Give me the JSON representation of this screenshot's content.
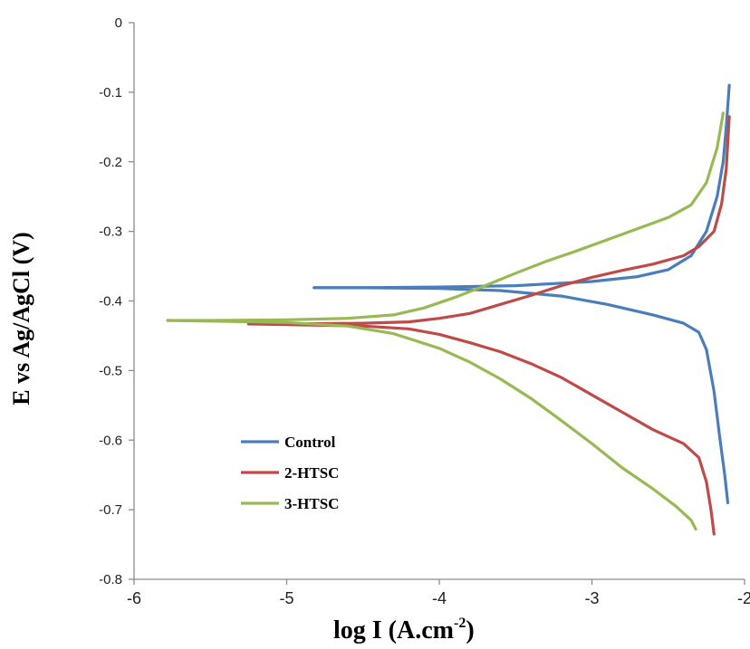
{
  "chart_data": {
    "type": "line",
    "title": "",
    "xlabel": "log I (A.cm",
    "xlabel_sup": "-2",
    "xlabel_close": ")",
    "ylabel": "E vs Ag/AgCl (V)",
    "xlim": [
      -6,
      -2
    ],
    "ylim": [
      -0.8,
      0
    ],
    "x_ticks": [
      -6,
      -5,
      -4,
      -3,
      -2
    ],
    "x_tick_labels": [
      "-6",
      "-5",
      "-4",
      "-3",
      "-2"
    ],
    "y_ticks": [
      0,
      -0.1,
      -0.2,
      -0.3,
      -0.4,
      -0.5,
      -0.6,
      -0.7,
      -0.8
    ],
    "y_tick_labels": [
      "0",
      "-0.1",
      "-0.2",
      "-0.3",
      "-0.4",
      "-0.5",
      "-0.6",
      "-0.7",
      "-0.8"
    ],
    "grid": false,
    "legend_position": "bottom-left",
    "series": [
      {
        "name": "Control",
        "color": "#4a7ebb",
        "anodic": [
          [
            -4.82,
            -0.381
          ],
          [
            -4.5,
            -0.381
          ],
          [
            -4.0,
            -0.38
          ],
          [
            -3.5,
            -0.378
          ],
          [
            -3.0,
            -0.372
          ],
          [
            -2.7,
            -0.365
          ],
          [
            -2.5,
            -0.355
          ],
          [
            -2.35,
            -0.335
          ],
          [
            -2.25,
            -0.3
          ],
          [
            -2.18,
            -0.25
          ],
          [
            -2.14,
            -0.2
          ],
          [
            -2.12,
            -0.15
          ],
          [
            -2.1,
            -0.09
          ]
        ],
        "cathodic": [
          [
            -4.82,
            -0.381
          ],
          [
            -4.5,
            -0.381
          ],
          [
            -4.0,
            -0.382
          ],
          [
            -3.6,
            -0.385
          ],
          [
            -3.2,
            -0.393
          ],
          [
            -2.9,
            -0.405
          ],
          [
            -2.6,
            -0.42
          ],
          [
            -2.4,
            -0.432
          ],
          [
            -2.3,
            -0.445
          ],
          [
            -2.25,
            -0.47
          ],
          [
            -2.2,
            -0.53
          ],
          [
            -2.16,
            -0.6
          ],
          [
            -2.13,
            -0.65
          ],
          [
            -2.11,
            -0.69
          ]
        ]
      },
      {
        "name": "2-HTSC",
        "color": "#be4b48",
        "anodic": [
          [
            -5.25,
            -0.433
          ],
          [
            -5.0,
            -0.433
          ],
          [
            -4.5,
            -0.432
          ],
          [
            -4.2,
            -0.43
          ],
          [
            -4.0,
            -0.425
          ],
          [
            -3.8,
            -0.418
          ],
          [
            -3.6,
            -0.405
          ],
          [
            -3.4,
            -0.392
          ],
          [
            -3.2,
            -0.378
          ],
          [
            -3.0,
            -0.366
          ],
          [
            -2.8,
            -0.356
          ],
          [
            -2.6,
            -0.347
          ],
          [
            -2.4,
            -0.335
          ],
          [
            -2.3,
            -0.322
          ],
          [
            -2.2,
            -0.3
          ],
          [
            -2.15,
            -0.26
          ],
          [
            -2.12,
            -0.21
          ],
          [
            -2.1,
            -0.135
          ]
        ],
        "cathodic": [
          [
            -5.25,
            -0.433
          ],
          [
            -5.0,
            -0.434
          ],
          [
            -4.5,
            -0.436
          ],
          [
            -4.2,
            -0.44
          ],
          [
            -4.0,
            -0.448
          ],
          [
            -3.8,
            -0.46
          ],
          [
            -3.6,
            -0.473
          ],
          [
            -3.4,
            -0.49
          ],
          [
            -3.2,
            -0.51
          ],
          [
            -3.0,
            -0.535
          ],
          [
            -2.8,
            -0.56
          ],
          [
            -2.6,
            -0.585
          ],
          [
            -2.4,
            -0.605
          ],
          [
            -2.3,
            -0.625
          ],
          [
            -2.25,
            -0.66
          ],
          [
            -2.22,
            -0.7
          ],
          [
            -2.2,
            -0.735
          ]
        ]
      },
      {
        "name": "3-HTSC",
        "color": "#98b954",
        "anodic": [
          [
            -5.78,
            -0.428
          ],
          [
            -5.5,
            -0.428
          ],
          [
            -5.0,
            -0.427
          ],
          [
            -4.6,
            -0.425
          ],
          [
            -4.3,
            -0.42
          ],
          [
            -4.1,
            -0.41
          ],
          [
            -3.9,
            -0.395
          ],
          [
            -3.7,
            -0.378
          ],
          [
            -3.5,
            -0.36
          ],
          [
            -3.3,
            -0.343
          ],
          [
            -3.1,
            -0.328
          ],
          [
            -2.9,
            -0.312
          ],
          [
            -2.7,
            -0.296
          ],
          [
            -2.5,
            -0.28
          ],
          [
            -2.35,
            -0.262
          ],
          [
            -2.25,
            -0.23
          ],
          [
            -2.18,
            -0.18
          ],
          [
            -2.14,
            -0.13
          ]
        ],
        "cathodic": [
          [
            -5.78,
            -0.428
          ],
          [
            -5.5,
            -0.429
          ],
          [
            -5.0,
            -0.431
          ],
          [
            -4.6,
            -0.436
          ],
          [
            -4.3,
            -0.447
          ],
          [
            -4.0,
            -0.468
          ],
          [
            -3.8,
            -0.488
          ],
          [
            -3.6,
            -0.512
          ],
          [
            -3.4,
            -0.54
          ],
          [
            -3.2,
            -0.572
          ],
          [
            -3.0,
            -0.605
          ],
          [
            -2.8,
            -0.64
          ],
          [
            -2.6,
            -0.67
          ],
          [
            -2.45,
            -0.695
          ],
          [
            -2.35,
            -0.715
          ],
          [
            -2.32,
            -0.728
          ]
        ]
      }
    ]
  }
}
